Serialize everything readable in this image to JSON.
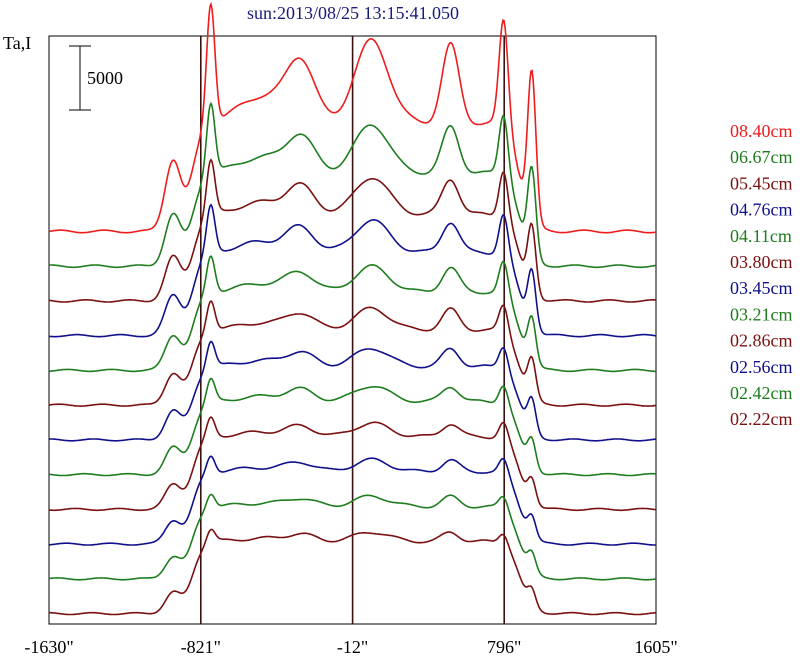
{
  "chart_data": {
    "type": "line",
    "title": "sun:2013/08/25 13:15:41.050",
    "ylabel": "Ta,I",
    "scale_label": "5000",
    "scale_value": 5000,
    "x_ticks": [
      {
        "value": -1630,
        "label": "-1630\""
      },
      {
        "value": -821,
        "label": "-821\""
      },
      {
        "value": -12,
        "label": "-12\""
      },
      {
        "value": 796,
        "label": "796\""
      },
      {
        "value": 1605,
        "label": "1605\""
      }
    ],
    "xlim": [
      -1630,
      1605
    ],
    "vertical_lines": [
      -821,
      -12,
      796
    ],
    "legend_position": "right",
    "series": [
      {
        "name": "08.40cm",
        "color": "#ee1c1c",
        "offset": 44000,
        "scale": 1.0
      },
      {
        "name": "06.67cm",
        "color": "#1e7d1e",
        "offset": 40000,
        "scale": 0.82
      },
      {
        "name": "05.45cm",
        "color": "#7a1010",
        "offset": 36000,
        "scale": 0.74
      },
      {
        "name": "04.76cm",
        "color": "#10108c",
        "offset": 32000,
        "scale": 0.7
      },
      {
        "name": "04.11cm",
        "color": "#1e7d1e",
        "offset": 28000,
        "scale": 0.64
      },
      {
        "name": "03.80cm",
        "color": "#7a1010",
        "offset": 24000,
        "scale": 0.6
      },
      {
        "name": "03.45cm",
        "color": "#10108c",
        "offset": 20000,
        "scale": 0.56
      },
      {
        "name": "03.21cm",
        "color": "#1e7d1e",
        "offset": 16000,
        "scale": 0.52
      },
      {
        "name": "02.86cm",
        "color": "#7a1010",
        "offset": 12000,
        "scale": 0.48
      },
      {
        "name": "02.56cm",
        "color": "#10108c",
        "offset": 8000,
        "scale": 0.45
      },
      {
        "name": "02.42cm",
        "color": "#1e7d1e",
        "offset": 4000,
        "scale": 0.42
      },
      {
        "name": "02.22cm",
        "color": "#7a1010",
        "offset": 0,
        "scale": 0.4
      }
    ],
    "ylim": [
      -1200,
      66500
    ]
  }
}
